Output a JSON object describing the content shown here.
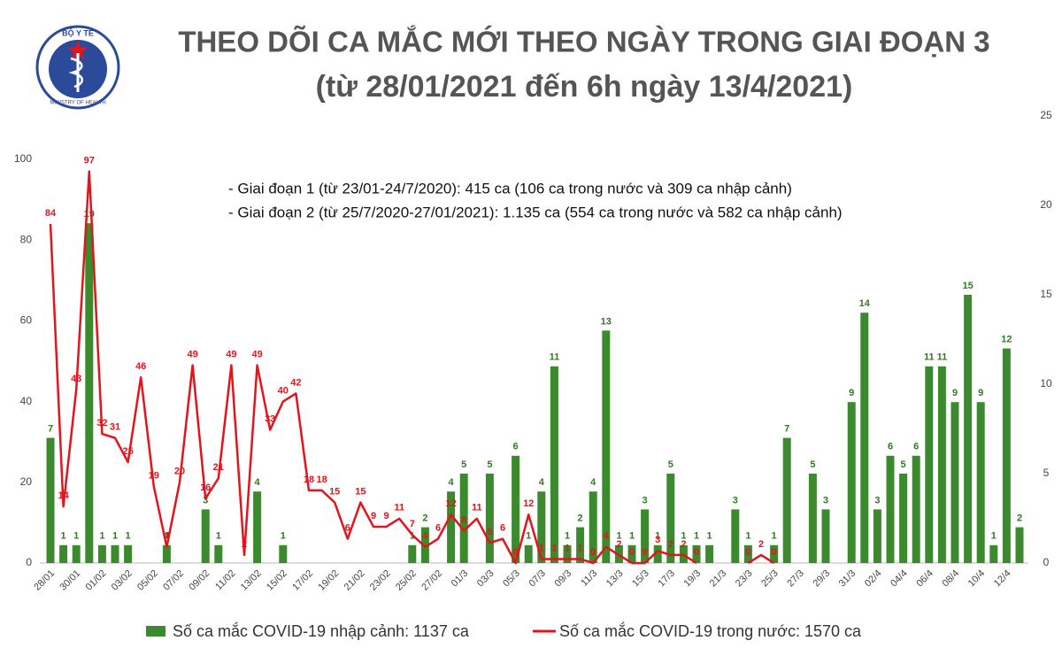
{
  "logo": {
    "top": "BỘ Y TẾ",
    "bottom": "MINISTRY OF HEALTH"
  },
  "chart_data": {
    "type": "combo",
    "title": "THEO DÕI CA MẮC MỚI THEO NGÀY TRONG GIAI ĐOẠN 3",
    "subtitle": "(từ 28/01/2021 đến 6h ngày 13/4/2021)",
    "annotations": [
      "- Giai đoạn 1 (từ 23/01-24/7/2020): 415 ca (106 ca trong nước và 309 ca nhập cảnh)",
      "- Giai đoạn 2 (từ 25/7/2020-27/01/2021): 1.135 ca (554 ca trong nước và 582 ca nhập cảnh)"
    ],
    "categories": [
      "28/01",
      null,
      "30/01",
      null,
      "01/02",
      null,
      "03/02",
      null,
      "05/02",
      null,
      "07/02",
      null,
      "09/02",
      null,
      "11/02",
      null,
      "13/02",
      null,
      "15/02",
      null,
      "17/02",
      null,
      "19/02",
      null,
      "21/02",
      null,
      "23/02",
      null,
      "25/02",
      null,
      "27/02",
      null,
      "01/3",
      null,
      "03/3",
      null,
      "05/3",
      null,
      "07/3",
      null,
      "09/3",
      null,
      "11/3",
      null,
      "13/3",
      null,
      "15/3",
      null,
      "17/3",
      null,
      "19/3",
      null,
      "21/3",
      null,
      "23/3",
      null,
      "25/3",
      null,
      "27/3",
      null,
      "29/3",
      null,
      "31/3",
      null,
      "02/4",
      null,
      "04/4",
      null,
      "06/4",
      null,
      "08/4",
      null,
      "10/4",
      null,
      "12/4",
      null
    ],
    "series": [
      {
        "name": "Số ca mắc COVID-19 nhập cảnh: 1137 ca",
        "type": "bar",
        "axis": "y2",
        "color": "#3c8a2e",
        "label_color": "#2f7a22",
        "values": [
          7,
          1,
          1,
          19,
          1,
          1,
          1,
          0,
          0,
          1,
          0,
          0,
          3,
          1,
          0,
          0,
          4,
          0,
          1,
          0,
          0,
          0,
          0,
          0,
          0,
          0,
          0,
          0,
          1,
          2,
          0,
          4,
          5,
          0,
          5,
          0,
          6,
          1,
          4,
          11,
          1,
          2,
          4,
          13,
          1,
          1,
          3,
          1,
          5,
          1,
          1,
          1,
          0,
          3,
          1,
          0,
          1,
          7,
          0,
          5,
          3,
          0,
          9,
          14,
          3,
          6,
          5,
          6,
          11,
          11,
          9,
          15,
          9,
          1,
          12,
          2
        ]
      },
      {
        "name": "Số ca mắc COVID-19 trong nước: 1570 ca",
        "type": "line",
        "axis": "y",
        "color": "#e3141b",
        "label_color": "#e3141b",
        "values": [
          84,
          14,
          43,
          97,
          32,
          31,
          25,
          46,
          19,
          4,
          20,
          49,
          16,
          21,
          49,
          2,
          49,
          33,
          40,
          42,
          18,
          18,
          15,
          6,
          15,
          9,
          9,
          11,
          7,
          4,
          6,
          12,
          8,
          11,
          5,
          6,
          0,
          12,
          1,
          1,
          1,
          1,
          0,
          4,
          2,
          0,
          0,
          3,
          2,
          2,
          0,
          null,
          null,
          null,
          0,
          2,
          0,
          null,
          null,
          null,
          null,
          null,
          null,
          null,
          null,
          null,
          null,
          null,
          null,
          null,
          null,
          null,
          null,
          null,
          null,
          null
        ]
      }
    ],
    "ylim": [
      0,
      100
    ],
    "yticks": [
      0,
      20,
      40,
      60,
      80,
      100
    ],
    "y2lim": [
      0,
      25
    ],
    "y2ticks": [
      0,
      5,
      10,
      15,
      20,
      25
    ]
  }
}
